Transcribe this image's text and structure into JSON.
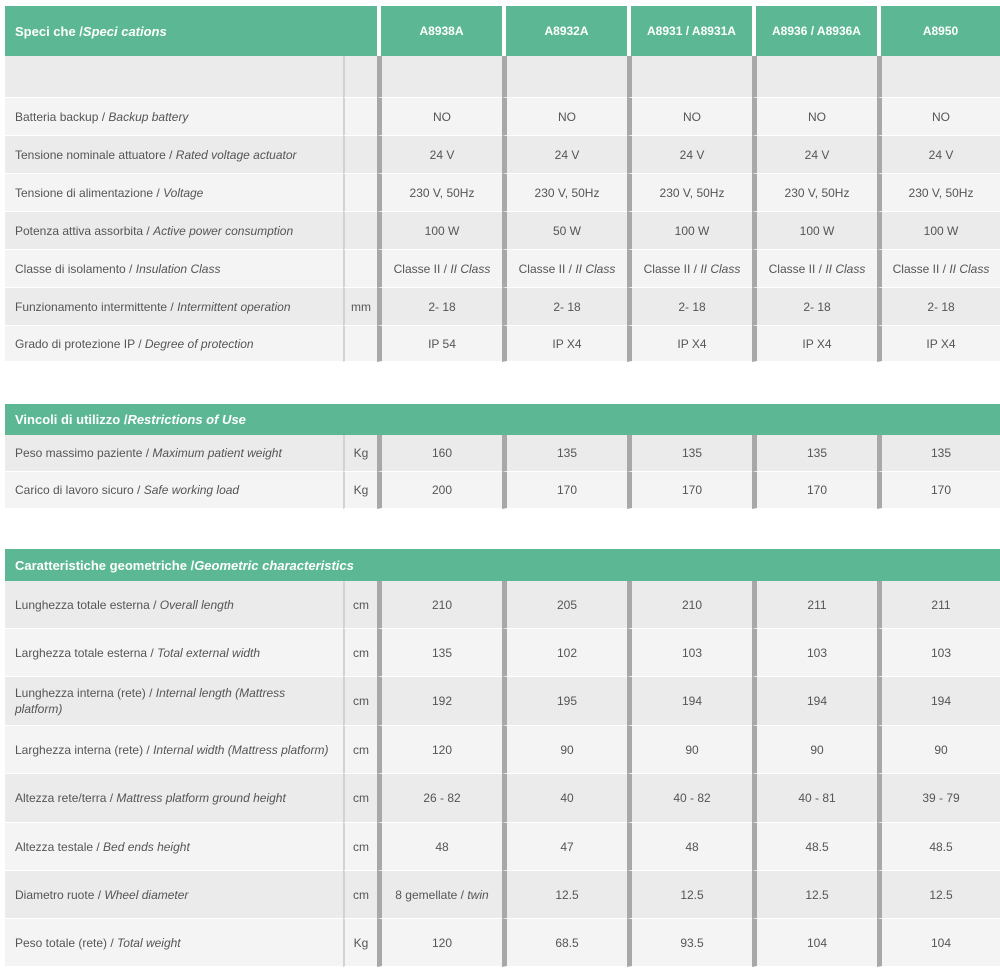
{
  "models": [
    "A8938A",
    "A8932A",
    "A8931 / A8931A",
    "A8936 / A8936A",
    "A8950"
  ],
  "sections": [
    {
      "title_it": "Speci  che / ",
      "title_en": "Speci  cations",
      "show_models": true,
      "rows": [
        {
          "label_it": "",
          "label_en": "",
          "unit": "",
          "values": [
            "",
            "",
            "",
            "",
            ""
          ]
        },
        {
          "label_it": "Batteria backup / ",
          "label_en": "Backup battery",
          "unit": "",
          "values": [
            "NO",
            "NO",
            "NO",
            "NO",
            "NO"
          ]
        },
        {
          "label_it": "Tensione nominale attuatore / ",
          "label_en": "Rated voltage actuator",
          "unit": "",
          "values": [
            "24 V",
            "24 V",
            "24 V",
            "24 V",
            "24 V"
          ]
        },
        {
          "label_it": "Tensione di alimentazione / ",
          "label_en": "Voltage",
          "unit": "",
          "values": [
            "230 V, 50Hz",
            "230 V, 50Hz",
            "230 V, 50Hz",
            "230 V, 50Hz",
            "230 V, 50Hz"
          ]
        },
        {
          "label_it": "Potenza attiva assorbita / ",
          "label_en": "Active power consumption",
          "unit": "",
          "values": [
            "100 W",
            "50 W",
            "100 W",
            "100 W",
            "100 W"
          ]
        },
        {
          "label_it": "Classe di isolamento / ",
          "label_en": "Insulation Class",
          "unit": "",
          "values": [
            "Classe II / II Class",
            "Classe II / II Class",
            "Classe II / II Class",
            "Classe II / II Class",
            "Classe II / II Class"
          ]
        },
        {
          "label_it": "Funzionamento intermittente / ",
          "label_en": "Intermittent operation",
          "unit": "mm",
          "values": [
            "2- 18",
            "2- 18",
            "2- 18",
            "2- 18",
            "2- 18"
          ]
        },
        {
          "label_it": "Grado di protezione IP / ",
          "label_en": "Degree of protection",
          "unit": "",
          "values": [
            "IP 54",
            "IP X4",
            "IP X4",
            "IP X4",
            "IP X4"
          ]
        }
      ]
    },
    {
      "title_it": "Vincoli di utilizzo / ",
      "title_en": "Restrictions of Use",
      "show_models": false,
      "rows": [
        {
          "label_it": "Peso massimo paziente / ",
          "label_en": "Maximum patient weight",
          "unit": "Kg",
          "values": [
            "160",
            "135",
            "135",
            "135",
            "135"
          ]
        },
        {
          "label_it": "Carico di lavoro sicuro / ",
          "label_en": "Safe working load",
          "unit": "Kg",
          "values": [
            "200",
            "170",
            "170",
            "170",
            "170"
          ]
        }
      ]
    },
    {
      "title_it": "Caratteristiche geometriche / ",
      "title_en": "Geometric characteristics",
      "show_models": false,
      "rows": [
        {
          "label_it": "Lunghezza totale esterna / ",
          "label_en": "Overall length",
          "unit": "cm",
          "values": [
            "210",
            "205",
            "210",
            "211",
            "211"
          ]
        },
        {
          "label_it": "Larghezza totale esterna / ",
          "label_en": "Total external width",
          "unit": "cm",
          "values": [
            "135",
            "102",
            "103",
            "103",
            "103"
          ]
        },
        {
          "label_it": "Lunghezza interna (rete) / ",
          "label_en": "Internal length (Mattress platform)",
          "unit": "cm",
          "values": [
            "192",
            "195",
            "194",
            "194",
            "194"
          ]
        },
        {
          "label_it": "Larghezza interna (rete) / ",
          "label_en": "Internal width (Mattress platform)",
          "unit": "cm",
          "values": [
            "120",
            "90",
            "90",
            "90",
            "90"
          ]
        },
        {
          "label_it": "Altezza rete/terra / ",
          "label_en": "Mattress platform ground height",
          "unit": "cm",
          "values": [
            "26 - 82",
            "40",
            "40 - 82",
            "40 - 81",
            "39 - 79"
          ]
        },
        {
          "label_it": "Altezza testale / ",
          "label_en": "Bed ends height",
          "unit": "cm",
          "values": [
            "48",
            "47",
            "48",
            "48.5",
            "48.5"
          ]
        },
        {
          "label_it": "Diametro ruote / ",
          "label_en": "Wheel diameter",
          "unit": "cm",
          "values": [
            "8 gemellate / twin",
            "12.5",
            "12.5",
            "12.5",
            "12.5"
          ]
        },
        {
          "label_it": "Peso totale (rete) / ",
          "label_en": "Total weight",
          "unit": "Kg",
          "values": [
            "120",
            "68.5",
            "93.5",
            "104",
            "104"
          ]
        }
      ]
    }
  ]
}
